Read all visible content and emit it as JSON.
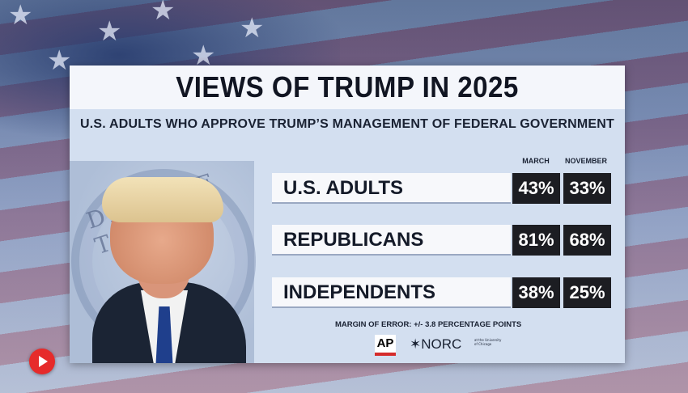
{
  "graphic": {
    "title": "VIEWS OF TRUMP IN 2025",
    "subtitle": "U.S. ADULTS WHO APPROVE TRUMP’S MANAGEMENT OF FEDERAL GOVERNMENT",
    "columns": [
      "MARCH",
      "NOVEMBER"
    ],
    "rows": [
      {
        "label": "U.S. ADULTS",
        "march": "43%",
        "november": "33%"
      },
      {
        "label": "REPUBLICANS",
        "march": "81%",
        "november": "68%"
      },
      {
        "label": "INDEPENDENTS",
        "march": "38%",
        "november": "25%"
      }
    ],
    "margin_of_error": "MARGIN OF ERROR: +/- 3.8 PERCENTAGE POINTS",
    "logos": {
      "ap": "AP",
      "norc": "✶NORC",
      "norc_small": "at the University of Chicago"
    },
    "seal_text": "DENT OF THE"
  },
  "chart_data": {
    "type": "table",
    "title": "VIEWS OF TRUMP IN 2025",
    "subtitle": "U.S. ADULTS WHO APPROVE TRUMP’S MANAGEMENT OF FEDERAL GOVERNMENT",
    "columns": [
      "MARCH",
      "NOVEMBER"
    ],
    "categories": [
      "U.S. ADULTS",
      "REPUBLICANS",
      "INDEPENDENTS"
    ],
    "series": [
      {
        "name": "MARCH",
        "values": [
          43,
          81,
          38
        ]
      },
      {
        "name": "NOVEMBER",
        "values": [
          33,
          68,
          25
        ]
      }
    ]
  },
  "colors": {
    "card": "#d3dff0",
    "cell": "#1c1d22",
    "accent_red": "#e62b2b"
  },
  "icons": {
    "play": "play-icon"
  }
}
